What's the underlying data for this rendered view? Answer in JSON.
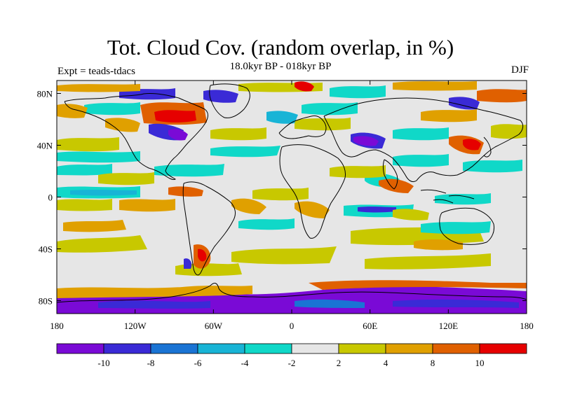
{
  "title": "Tot. Cloud Cov. (random overlap, in %)",
  "subtitle": "18.0kyr BP - 018kyr BP",
  "left_label": "Expt = teads-tdacs",
  "right_label": "DJF",
  "lat_ticks": [
    {
      "label": "80N",
      "lat": 80
    },
    {
      "label": "40N",
      "lat": 40
    },
    {
      "label": "0",
      "lat": 0
    },
    {
      "label": "40S",
      "lat": -40
    },
    {
      "label": "80S",
      "lat": -80
    }
  ],
  "lon_ticks": [
    {
      "label": "180",
      "lon": -180
    },
    {
      "label": "120W",
      "lon": -120
    },
    {
      "label": "60W",
      "lon": -60
    },
    {
      "label": "0",
      "lon": 0
    },
    {
      "label": "60E",
      "lon": 60
    },
    {
      "label": "120E",
      "lon": 120
    },
    {
      "label": "180",
      "lon": 180
    }
  ],
  "colorbar": {
    "colors": [
      "#7a0ad6",
      "#3a2ad6",
      "#1a74d4",
      "#18b4d6",
      "#10d8c8",
      "#e6e6e6",
      "#c8c800",
      "#e0a000",
      "#e06000",
      "#e60000"
    ],
    "labels": [
      "-10",
      "-8",
      "-6",
      "-4",
      "-2",
      "2",
      "4",
      "8",
      "10"
    ]
  },
  "map_colors": {
    "neutral": "#e6e6e6",
    "coast": "#000000"
  }
}
